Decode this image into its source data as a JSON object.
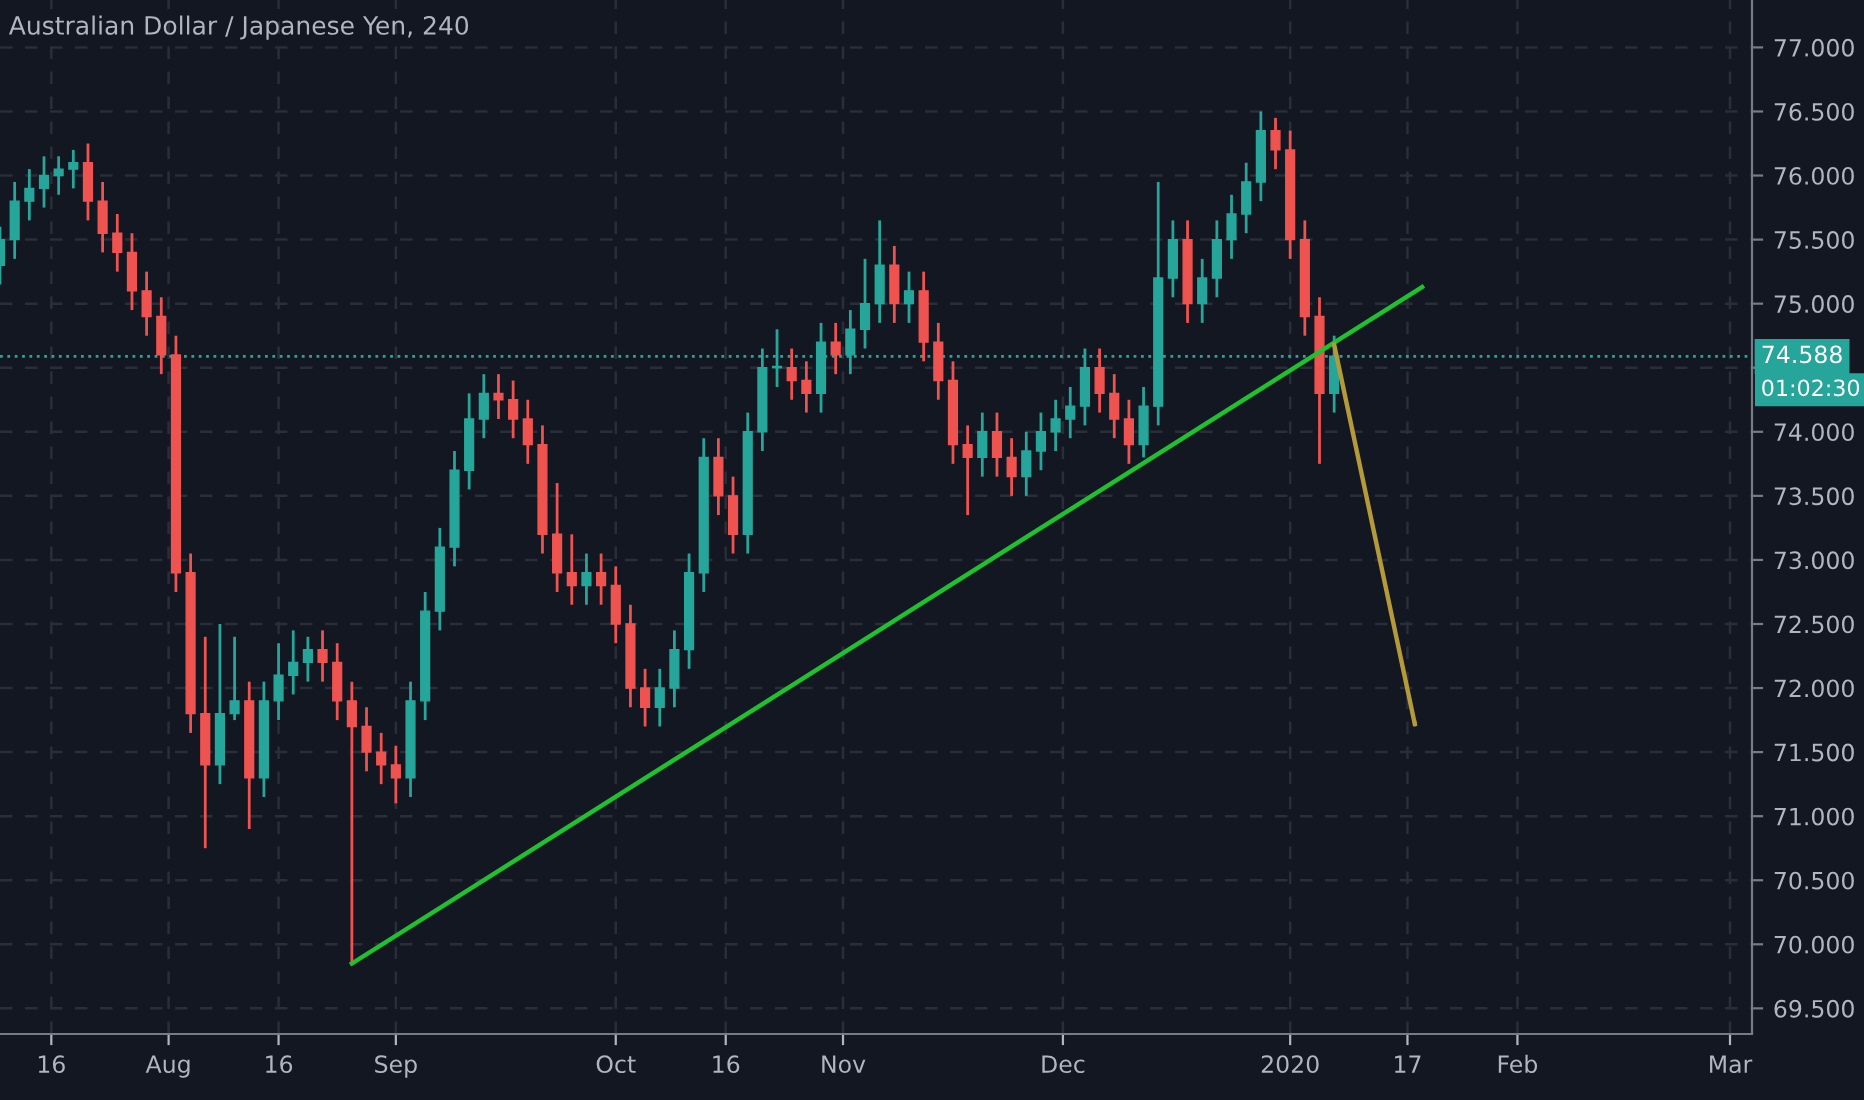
{
  "chart_data": {
    "type": "candlestick",
    "title": "Australian Dollar / Japanese Yen, 240",
    "x": [
      "2019-07-09",
      "2019-07-11",
      "2019-07-13",
      "2019-07-15",
      "2019-07-17",
      "2019-07-19",
      "2019-07-21",
      "2019-07-23",
      "2019-07-25",
      "2019-07-27",
      "2019-07-29",
      "2019-07-31",
      "2019-08-02",
      "2019-08-04",
      "2019-08-06",
      "2019-08-08",
      "2019-08-10",
      "2019-08-12",
      "2019-08-14",
      "2019-08-16",
      "2019-08-18",
      "2019-08-20",
      "2019-08-22",
      "2019-08-24",
      "2019-08-26",
      "2019-08-28",
      "2019-08-30",
      "2019-09-01",
      "2019-09-03",
      "2019-09-05",
      "2019-09-07",
      "2019-09-09",
      "2019-09-11",
      "2019-09-13",
      "2019-09-15",
      "2019-09-17",
      "2019-09-19",
      "2019-09-21",
      "2019-09-23",
      "2019-09-25",
      "2019-09-27",
      "2019-09-29",
      "2019-10-01",
      "2019-10-03",
      "2019-10-05",
      "2019-10-07",
      "2019-10-09",
      "2019-10-11",
      "2019-10-13",
      "2019-10-15",
      "2019-10-17",
      "2019-10-19",
      "2019-10-21",
      "2019-10-23",
      "2019-10-25",
      "2019-10-27",
      "2019-10-29",
      "2019-10-31",
      "2019-11-02",
      "2019-11-04",
      "2019-11-06",
      "2019-11-08",
      "2019-11-10",
      "2019-11-12",
      "2019-11-14",
      "2019-11-16",
      "2019-11-18",
      "2019-11-20",
      "2019-11-22",
      "2019-11-24",
      "2019-11-26",
      "2019-11-28",
      "2019-11-30",
      "2019-12-02",
      "2019-12-04",
      "2019-12-06",
      "2019-12-08",
      "2019-12-10",
      "2019-12-12",
      "2019-12-14",
      "2019-12-16",
      "2019-12-18",
      "2019-12-20",
      "2019-12-22",
      "2019-12-24",
      "2019-12-26",
      "2019-12-28",
      "2019-12-30",
      "2020-01-01",
      "2020-01-03",
      "2020-01-05",
      "2020-01-07"
    ],
    "ohlc": [
      [
        75.3,
        75.6,
        75.15,
        75.5
      ],
      [
        75.5,
        75.95,
        75.35,
        75.8
      ],
      [
        75.8,
        76.05,
        75.65,
        75.9
      ],
      [
        75.9,
        76.15,
        75.75,
        76.0
      ],
      [
        76.0,
        76.15,
        75.85,
        76.05
      ],
      [
        76.05,
        76.2,
        75.9,
        76.1
      ],
      [
        76.1,
        76.25,
        75.65,
        75.8
      ],
      [
        75.8,
        75.95,
        75.4,
        75.55
      ],
      [
        75.55,
        75.7,
        75.25,
        75.4
      ],
      [
        75.4,
        75.55,
        74.95,
        75.1
      ],
      [
        75.1,
        75.25,
        74.75,
        74.9
      ],
      [
        74.9,
        75.05,
        74.45,
        74.6
      ],
      [
        74.6,
        74.75,
        72.75,
        72.9
      ],
      [
        72.9,
        73.05,
        71.65,
        71.8
      ],
      [
        71.8,
        72.4,
        70.75,
        71.4
      ],
      [
        71.4,
        72.5,
        71.25,
        71.8
      ],
      [
        71.8,
        72.4,
        71.75,
        71.9
      ],
      [
        71.9,
        72.05,
        70.9,
        71.3
      ],
      [
        71.3,
        72.05,
        71.15,
        71.9
      ],
      [
        71.9,
        72.35,
        71.75,
        72.1
      ],
      [
        72.1,
        72.45,
        71.95,
        72.2
      ],
      [
        72.2,
        72.4,
        72.05,
        72.3
      ],
      [
        72.3,
        72.45,
        72.05,
        72.2
      ],
      [
        72.2,
        72.35,
        71.75,
        71.9
      ],
      [
        71.9,
        72.05,
        69.85,
        71.7
      ],
      [
        71.7,
        71.85,
        71.35,
        71.5
      ],
      [
        71.5,
        71.65,
        71.25,
        71.4
      ],
      [
        71.4,
        71.55,
        71.1,
        71.3
      ],
      [
        71.3,
        72.05,
        71.15,
        71.9
      ],
      [
        71.9,
        72.75,
        71.75,
        72.6
      ],
      [
        72.6,
        73.25,
        72.45,
        73.1
      ],
      [
        73.1,
        73.85,
        72.95,
        73.7
      ],
      [
        73.7,
        74.3,
        73.55,
        74.1
      ],
      [
        74.1,
        74.45,
        73.95,
        74.3
      ],
      [
        74.3,
        74.45,
        74.1,
        74.25
      ],
      [
        74.25,
        74.4,
        73.95,
        74.1
      ],
      [
        74.1,
        74.25,
        73.75,
        73.9
      ],
      [
        73.9,
        74.05,
        73.05,
        73.2
      ],
      [
        73.2,
        73.6,
        72.75,
        72.9
      ],
      [
        72.9,
        73.2,
        72.65,
        72.8
      ],
      [
        72.8,
        73.05,
        72.65,
        72.9
      ],
      [
        72.9,
        73.05,
        72.65,
        72.8
      ],
      [
        72.8,
        72.95,
        72.35,
        72.5
      ],
      [
        72.5,
        72.65,
        71.85,
        72.0
      ],
      [
        72.0,
        72.15,
        71.7,
        71.85
      ],
      [
        71.85,
        72.15,
        71.7,
        72.0
      ],
      [
        72.0,
        72.45,
        71.85,
        72.3
      ],
      [
        72.3,
        73.05,
        72.15,
        72.9
      ],
      [
        72.9,
        73.95,
        72.75,
        73.8
      ],
      [
        73.8,
        73.95,
        73.35,
        73.5
      ],
      [
        73.5,
        73.65,
        73.05,
        73.2
      ],
      [
        73.2,
        74.15,
        73.05,
        74.0
      ],
      [
        74.0,
        74.65,
        73.85,
        74.5
      ],
      [
        74.5,
        74.8,
        74.35,
        74.5
      ],
      [
        74.5,
        74.65,
        74.25,
        74.4
      ],
      [
        74.4,
        74.55,
        74.15,
        74.3
      ],
      [
        74.3,
        74.85,
        74.15,
        74.7
      ],
      [
        74.7,
        74.85,
        74.45,
        74.6
      ],
      [
        74.6,
        74.95,
        74.45,
        74.8
      ],
      [
        74.8,
        75.35,
        74.65,
        75.0
      ],
      [
        75.0,
        75.65,
        74.85,
        75.3
      ],
      [
        75.3,
        75.45,
        74.85,
        75.0
      ],
      [
        75.0,
        75.25,
        74.85,
        75.1
      ],
      [
        75.1,
        75.25,
        74.55,
        74.7
      ],
      [
        74.7,
        74.85,
        74.25,
        74.4
      ],
      [
        74.4,
        74.55,
        73.75,
        73.9
      ],
      [
        73.9,
        74.05,
        73.35,
        73.8
      ],
      [
        73.8,
        74.15,
        73.65,
        74.0
      ],
      [
        74.0,
        74.15,
        73.65,
        73.8
      ],
      [
        73.8,
        73.95,
        73.5,
        73.65
      ],
      [
        73.65,
        74.0,
        73.5,
        73.85
      ],
      [
        73.85,
        74.15,
        73.7,
        74.0
      ],
      [
        74.0,
        74.25,
        73.85,
        74.1
      ],
      [
        74.1,
        74.35,
        73.95,
        74.2
      ],
      [
        74.2,
        74.65,
        74.05,
        74.5
      ],
      [
        74.5,
        74.65,
        74.15,
        74.3
      ],
      [
        74.3,
        74.45,
        73.95,
        74.1
      ],
      [
        74.1,
        74.25,
        73.75,
        73.9
      ],
      [
        73.9,
        74.35,
        73.8,
        74.2
      ],
      [
        74.2,
        75.95,
        74.05,
        75.2
      ],
      [
        75.2,
        75.65,
        75.05,
        75.5
      ],
      [
        75.5,
        75.65,
        74.85,
        75.0
      ],
      [
        75.0,
        75.35,
        74.85,
        75.2
      ],
      [
        75.2,
        75.65,
        75.05,
        75.5
      ],
      [
        75.5,
        75.85,
        75.35,
        75.7
      ],
      [
        75.7,
        76.1,
        75.55,
        75.95
      ],
      [
        75.95,
        76.5,
        75.8,
        76.35
      ],
      [
        76.35,
        76.45,
        76.05,
        76.2
      ],
      [
        76.2,
        76.35,
        75.35,
        75.5
      ],
      [
        75.5,
        75.65,
        74.75,
        74.9
      ],
      [
        74.9,
        75.05,
        73.75,
        74.3
      ],
      [
        74.3,
        74.75,
        74.15,
        74.59
      ]
    ],
    "series": [
      {
        "type": "line",
        "x": [
          "2019-08-26",
          "2020-01-19"
        ],
        "values": [
          69.85,
          75.13
        ],
        "color": "#1fc22e"
      },
      {
        "type": "line",
        "x": [
          "2020-01-07",
          "2020-01-18"
        ],
        "values": [
          74.68,
          71.72
        ],
        "color": "#b59a3a"
      }
    ],
    "xlim": [
      "2019-07-09",
      "2020-03-04"
    ],
    "xticks": [
      {
        "value": "2019-07-16",
        "label": "16"
      },
      {
        "value": "2019-08-01",
        "label": "Aug"
      },
      {
        "value": "2019-08-16",
        "label": "16"
      },
      {
        "value": "2019-09-01",
        "label": "Sep"
      },
      {
        "value": "2019-10-01",
        "label": "Oct"
      },
      {
        "value": "2019-10-16",
        "label": "16"
      },
      {
        "value": "2019-11-01",
        "label": "Nov"
      },
      {
        "value": "2019-12-01",
        "label": "Dec"
      },
      {
        "value": "2020-01-01",
        "label": "2020"
      },
      {
        "value": "2020-01-17",
        "label": "17"
      },
      {
        "value": "2020-02-01",
        "label": "Feb"
      },
      {
        "value": "2020-03-01",
        "label": "Mar"
      }
    ],
    "ylim": [
      69.3,
      77.37
    ],
    "yticks": [
      {
        "value": 69.5,
        "label": "69.500"
      },
      {
        "value": 70,
        "label": "70.000"
      },
      {
        "value": 70.5,
        "label": "70.500"
      },
      {
        "value": 71,
        "label": "71.000"
      },
      {
        "value": 71.5,
        "label": "71.500"
      },
      {
        "value": 72,
        "label": "72.000"
      },
      {
        "value": 72.5,
        "label": "72.500"
      },
      {
        "value": 73,
        "label": "73.000"
      },
      {
        "value": 73.5,
        "label": "73.500"
      },
      {
        "value": 74,
        "label": "74.000"
      },
      {
        "value": 74.5,
        "label": null
      },
      {
        "value": 75,
        "label": "75.000"
      },
      {
        "value": 75.5,
        "label": "75.500"
      },
      {
        "value": 76,
        "label": "76.000"
      },
      {
        "value": 76.5,
        "label": "76.500"
      },
      {
        "value": 77,
        "label": "77.000"
      }
    ],
    "ref_lines": [
      {
        "axis": "y",
        "value": 74.588,
        "label": "74.588",
        "color": "#26a69a",
        "line_style": "dotted"
      }
    ],
    "annotations": [
      "01:02:30"
    ],
    "grid": true,
    "colors": [
      "#26a69a",
      "#26a69a",
      "#26a69a",
      "#26a69a",
      "#26a69a",
      "#26a69a",
      "#ef5350",
      "#ef5350",
      "#ef5350",
      "#ef5350",
      "#ef5350",
      "#ef5350",
      "#ef5350",
      "#ef5350",
      "#ef5350",
      "#26a69a",
      "#26a69a",
      "#ef5350",
      "#26a69a",
      "#26a69a",
      "#26a69a",
      "#26a69a",
      "#ef5350",
      "#ef5350",
      "#ef5350",
      "#ef5350",
      "#ef5350",
      "#ef5350",
      "#26a69a",
      "#26a69a",
      "#26a69a",
      "#26a69a",
      "#26a69a",
      "#26a69a",
      "#ef5350",
      "#ef5350",
      "#ef5350",
      "#ef5350",
      "#ef5350",
      "#ef5350",
      "#26a69a",
      "#ef5350",
      "#ef5350",
      "#ef5350",
      "#ef5350",
      "#26a69a",
      "#26a69a",
      "#26a69a",
      "#26a69a",
      "#ef5350",
      "#ef5350",
      "#26a69a",
      "#26a69a",
      "#26a69a",
      "#ef5350",
      "#ef5350",
      "#26a69a",
      "#ef5350",
      "#26a69a",
      "#26a69a",
      "#26a69a",
      "#ef5350",
      "#26a69a",
      "#ef5350",
      "#ef5350",
      "#ef5350",
      "#ef5350",
      "#26a69a",
      "#ef5350",
      "#ef5350",
      "#26a69a",
      "#26a69a",
      "#26a69a",
      "#26a69a",
      "#26a69a",
      "#ef5350",
      "#ef5350",
      "#ef5350",
      "#26a69a",
      "#26a69a",
      "#26a69a",
      "#ef5350",
      "#26a69a",
      "#26a69a",
      "#26a69a",
      "#26a69a",
      "#26a69a",
      "#ef5350",
      "#ef5350",
      "#ef5350",
      "#ef5350",
      "#26a69a"
    ]
  }
}
